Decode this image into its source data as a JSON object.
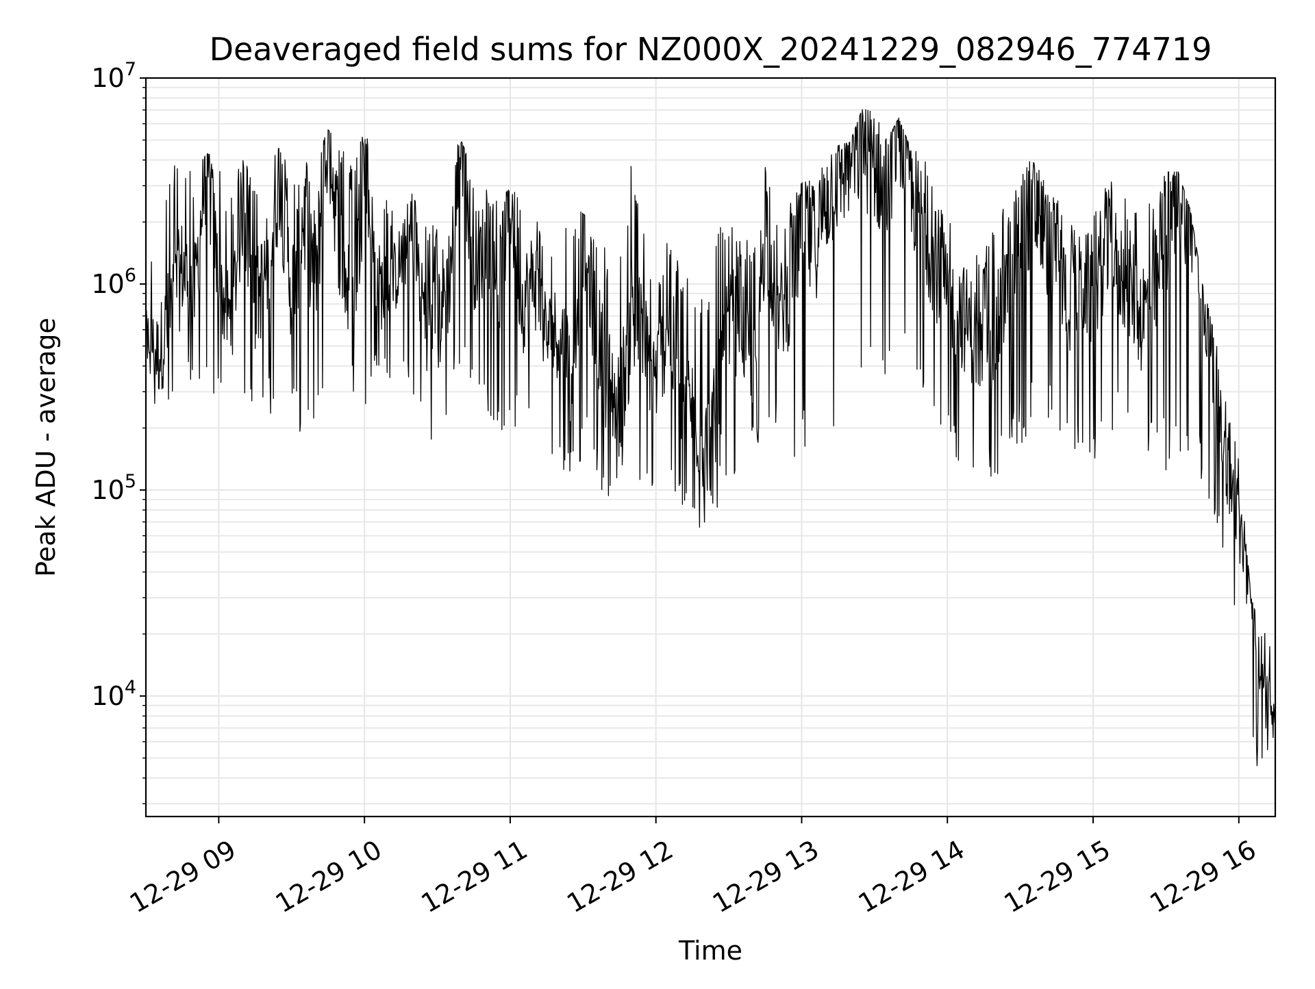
{
  "chart_data": {
    "type": "line",
    "title": "Deaveraged field sums for NZ000X_20241229_082946_774719",
    "xlabel": "Time",
    "ylabel": "Peak ADU - average",
    "yscale": "log",
    "ylim": [
      2600,
      10000000
    ],
    "xlim": [
      "2024-12-29 08:30",
      "2024-12-29 16:15"
    ],
    "grid": true,
    "x_ticks": [
      {
        "value": "2024-12-29 09:00",
        "label": "12-29 09"
      },
      {
        "value": "2024-12-29 10:00",
        "label": "12-29 10"
      },
      {
        "value": "2024-12-29 11:00",
        "label": "12-29 11"
      },
      {
        "value": "2024-12-29 12:00",
        "label": "12-29 12"
      },
      {
        "value": "2024-12-29 13:00",
        "label": "12-29 13"
      },
      {
        "value": "2024-12-29 14:00",
        "label": "12-29 14"
      },
      {
        "value": "2024-12-29 15:00",
        "label": "12-29 15"
      },
      {
        "value": "2024-12-29 16:00",
        "label": "12-29 16"
      }
    ],
    "y_ticks": [
      {
        "value": 10000,
        "base": "10",
        "exp": "4"
      },
      {
        "value": 100000,
        "base": "10",
        "exp": "5"
      },
      {
        "value": 1000000,
        "base": "10",
        "exp": "6"
      },
      {
        "value": 10000000,
        "base": "10",
        "exp": "7"
      }
    ],
    "series": [
      {
        "color": "#000000",
        "x": [
          "2024-12-29 08:30",
          "2024-12-29 08:35",
          "2024-12-29 08:40",
          "2024-12-29 08:45",
          "2024-12-29 08:50",
          "2024-12-29 08:55",
          "2024-12-29 09:00",
          "2024-12-29 09:05",
          "2024-12-29 09:10",
          "2024-12-29 09:15",
          "2024-12-29 09:20",
          "2024-12-29 09:25",
          "2024-12-29 09:30",
          "2024-12-29 09:35",
          "2024-12-29 09:40",
          "2024-12-29 09:45",
          "2024-12-29 09:50",
          "2024-12-29 09:55",
          "2024-12-29 10:00",
          "2024-12-29 10:05",
          "2024-12-29 10:10",
          "2024-12-29 10:15",
          "2024-12-29 10:20",
          "2024-12-29 10:25",
          "2024-12-29 10:30",
          "2024-12-29 10:35",
          "2024-12-29 10:40",
          "2024-12-29 10:45",
          "2024-12-29 10:50",
          "2024-12-29 10:55",
          "2024-12-29 11:00",
          "2024-12-29 11:05",
          "2024-12-29 11:10",
          "2024-12-29 11:15",
          "2024-12-29 11:20",
          "2024-12-29 11:25",
          "2024-12-29 11:30",
          "2024-12-29 11:35",
          "2024-12-29 11:40",
          "2024-12-29 11:45",
          "2024-12-29 11:50",
          "2024-12-29 11:55",
          "2024-12-29 12:00",
          "2024-12-29 12:05",
          "2024-12-29 12:10",
          "2024-12-29 12:15",
          "2024-12-29 12:20",
          "2024-12-29 12:25",
          "2024-12-29 12:30",
          "2024-12-29 12:35",
          "2024-12-29 12:40",
          "2024-12-29 12:45",
          "2024-12-29 12:50",
          "2024-12-29 12:55",
          "2024-12-29 13:00",
          "2024-12-29 13:05",
          "2024-12-29 13:10",
          "2024-12-29 13:15",
          "2024-12-29 13:20",
          "2024-12-29 13:25",
          "2024-12-29 13:30",
          "2024-12-29 13:35",
          "2024-12-29 13:40",
          "2024-12-29 13:45",
          "2024-12-29 13:50",
          "2024-12-29 13:55",
          "2024-12-29 14:00",
          "2024-12-29 14:05",
          "2024-12-29 14:10",
          "2024-12-29 14:15",
          "2024-12-29 14:20",
          "2024-12-29 14:25",
          "2024-12-29 14:30",
          "2024-12-29 14:35",
          "2024-12-29 14:40",
          "2024-12-29 14:45",
          "2024-12-29 14:50",
          "2024-12-29 14:55",
          "2024-12-29 15:00",
          "2024-12-29 15:05",
          "2024-12-29 15:10",
          "2024-12-29 15:15",
          "2024-12-29 15:20",
          "2024-12-29 15:25",
          "2024-12-29 15:30",
          "2024-12-29 15:35",
          "2024-12-29 15:40",
          "2024-12-29 15:45",
          "2024-12-29 15:50",
          "2024-12-29 15:55",
          "2024-12-29 16:00",
          "2024-12-29 16:05",
          "2024-12-29 16:10",
          "2024-12-29 16:15"
        ],
        "y": [
          600000,
          450000,
          700000,
          1200000,
          900000,
          4200000,
          1000000,
          650000,
          2500000,
          800000,
          1200000,
          3500000,
          900000,
          2200000,
          1100000,
          5500000,
          1500000,
          700000,
          3900000,
          1000000,
          900000,
          1300000,
          1800000,
          700000,
          650000,
          1100000,
          4900000,
          1300000,
          1500000,
          900000,
          2700000,
          800000,
          1100000,
          550000,
          600000,
          380000,
          1800000,
          650000,
          350000,
          250000,
          700000,
          500000,
          350000,
          650000,
          300000,
          250000,
          160000,
          200000,
          600000,
          700000,
          300000,
          2200000,
          700000,
          900000,
          2000000,
          1500000,
          2600000,
          3500000,
          4000000,
          5000000,
          3800000,
          3000000,
          6400000,
          2800000,
          2000000,
          1200000,
          900000,
          750000,
          600000,
          450000,
          550000,
          1100000,
          1900000,
          2400000,
          1700000,
          1300000,
          800000,
          1000000,
          900000,
          1500000,
          1200000,
          1000000,
          700000,
          900000,
          1800000,
          3200000,
          2100000,
          1000000,
          300000,
          130000,
          70000,
          30000,
          10000,
          9000
        ],
        "y_min": [
          450000,
          200000,
          250000,
          300000,
          350000,
          200000,
          350000,
          250000,
          300000,
          200000,
          250000,
          200000,
          250000,
          150000,
          200000,
          250000,
          300000,
          250000,
          200000,
          400000,
          350000,
          300000,
          250000,
          150000,
          100000,
          300000,
          350000,
          300000,
          250000,
          200000,
          180000,
          200000,
          180000,
          150000,
          120000,
          120000,
          130000,
          120000,
          80000,
          100000,
          120000,
          90000,
          100000,
          90000,
          80000,
          70000,
          60000,
          80000,
          100000,
          120000,
          150000,
          120000,
          200000,
          150000,
          120000,
          150000,
          180000,
          200000,
          220000,
          250000,
          300000,
          250000,
          300000,
          300000,
          250000,
          200000,
          150000,
          130000,
          120000,
          120000,
          110000,
          130000,
          150000,
          180000,
          200000,
          200000,
          150000,
          150000,
          120000,
          180000,
          200000,
          150000,
          130000,
          150000,
          120000,
          140000,
          120000,
          100000,
          70000,
          40000,
          20000,
          5000,
          4000,
          6000
        ],
        "y_max": [
          1200000,
          1800000,
          4200000,
          4000000,
          3500000,
          4300000,
          4100000,
          2700000,
          4500000,
          2800000,
          3800000,
          4600000,
          3600000,
          4100000,
          4200000,
          5600000,
          5000000,
          4100000,
          5500000,
          3900000,
          2400000,
          2000000,
          2900000,
          2100000,
          1900000,
          4900000,
          4900000,
          3600000,
          2900000,
          2600000,
          2900000,
          2600000,
          2400000,
          1400000,
          1300000,
          2400000,
          2200000,
          1900000,
          1400000,
          1400000,
          4200000,
          1800000,
          1000000,
          1700000,
          1300000,
          1000000,
          850000,
          2400000,
          2000000,
          1600000,
          1900000,
          3800000,
          1900000,
          2500000,
          3100000,
          3200000,
          3900000,
          4700000,
          4900000,
          7100000,
          6800000,
          5000000,
          6400000,
          4500000,
          4400000,
          2600000,
          2400000,
          2100000,
          1800000,
          1500000,
          1900000,
          2800000,
          3400000,
          4100000,
          3300000,
          2800000,
          1900000,
          2100000,
          2200000,
          3200000,
          3300000,
          2300000,
          2500000,
          2800000,
          3500000,
          3500000,
          2300000,
          1000000,
          580000,
          250000,
          150000,
          30000,
          22000,
          15000
        ]
      }
    ]
  }
}
